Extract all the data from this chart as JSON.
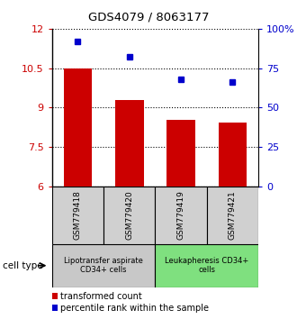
{
  "title": "GDS4079 / 8063177",
  "samples": [
    "GSM779418",
    "GSM779420",
    "GSM779419",
    "GSM779421"
  ],
  "bar_values": [
    10.5,
    9.3,
    8.55,
    8.45
  ],
  "point_values": [
    92,
    82,
    68,
    66
  ],
  "bar_color": "#cc0000",
  "point_color": "#0000cc",
  "yleft_min": 6,
  "yleft_max": 12,
  "yright_min": 0,
  "yright_max": 100,
  "yticks_left": [
    6,
    7.5,
    9,
    10.5,
    12
  ],
  "yticks_right": [
    0,
    25,
    50,
    75,
    100
  ],
  "ytick_labels_right": [
    "0",
    "25",
    "50",
    "75",
    "100%"
  ],
  "groups": [
    {
      "label": "Lipotransfer aspirate\nCD34+ cells",
      "samples": [
        0,
        1
      ],
      "color": "#c8c8c8"
    },
    {
      "label": "Leukapheresis CD34+\ncells",
      "samples": [
        2,
        3
      ],
      "color": "#7fe07f"
    }
  ],
  "cell_type_label": "cell type",
  "legend_bar_label": "transformed count",
  "legend_point_label": "percentile rank within the sample",
  "bar_width": 0.55
}
